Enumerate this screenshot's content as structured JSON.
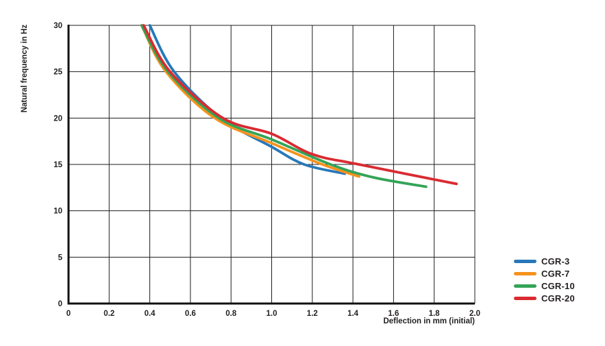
{
  "chart_data": {
    "type": "line",
    "title": "",
    "xlabel": "Deflection in mm (initial)",
    "ylabel": "Natural frequency in Hz",
    "xlim": [
      0,
      2.0
    ],
    "ylim": [
      0,
      30
    ],
    "grid": true,
    "legend_position": "right-bottom",
    "x_ticks": [
      0,
      0.2,
      0.4,
      0.6,
      0.8,
      1.0,
      1.2,
      1.4,
      1.6,
      1.8,
      2.0
    ],
    "x_tick_labels": [
      "0",
      "0.2",
      "0.4",
      "0.6",
      "0.8",
      "1.0",
      "1.2",
      "1.4",
      "1.6",
      "1.8",
      "2.0"
    ],
    "y_ticks": [
      0,
      5,
      10,
      15,
      20,
      25,
      30
    ],
    "y_tick_labels": [
      "0",
      "5",
      "10",
      "15",
      "20",
      "25",
      "30"
    ],
    "series": [
      {
        "name": "CGR-3",
        "color": "#2878b8",
        "points": [
          [
            0.4,
            30
          ],
          [
            0.52,
            25
          ],
          [
            0.75,
            20
          ],
          [
            1.0,
            16.9
          ],
          [
            1.16,
            15.0
          ],
          [
            1.36,
            14.0
          ]
        ]
      },
      {
        "name": "CGR-7",
        "color": "#f6921e",
        "points": [
          [
            0.36,
            30
          ],
          [
            0.48,
            25
          ],
          [
            0.72,
            20
          ],
          [
            1.0,
            17.3
          ],
          [
            1.25,
            15.0
          ],
          [
            1.43,
            13.7
          ]
        ]
      },
      {
        "name": "CGR-10",
        "color": "#33a457",
        "points": [
          [
            0.36,
            30
          ],
          [
            0.49,
            25
          ],
          [
            0.74,
            20
          ],
          [
            1.0,
            17.7
          ],
          [
            1.29,
            15.0
          ],
          [
            1.5,
            13.6
          ],
          [
            1.76,
            12.6
          ]
        ]
      },
      {
        "name": "CGR-20",
        "color": "#d92b31",
        "points": [
          [
            0.37,
            30
          ],
          [
            0.5,
            25
          ],
          [
            0.76,
            20
          ],
          [
            1.0,
            18.3
          ],
          [
            1.2,
            16.1
          ],
          [
            1.43,
            15.0
          ],
          [
            1.91,
            12.9
          ]
        ]
      }
    ]
  },
  "colors": {
    "background": "#ffffff",
    "grid": "#1c1c1c",
    "axis": "#111111",
    "text": "#231f20"
  }
}
